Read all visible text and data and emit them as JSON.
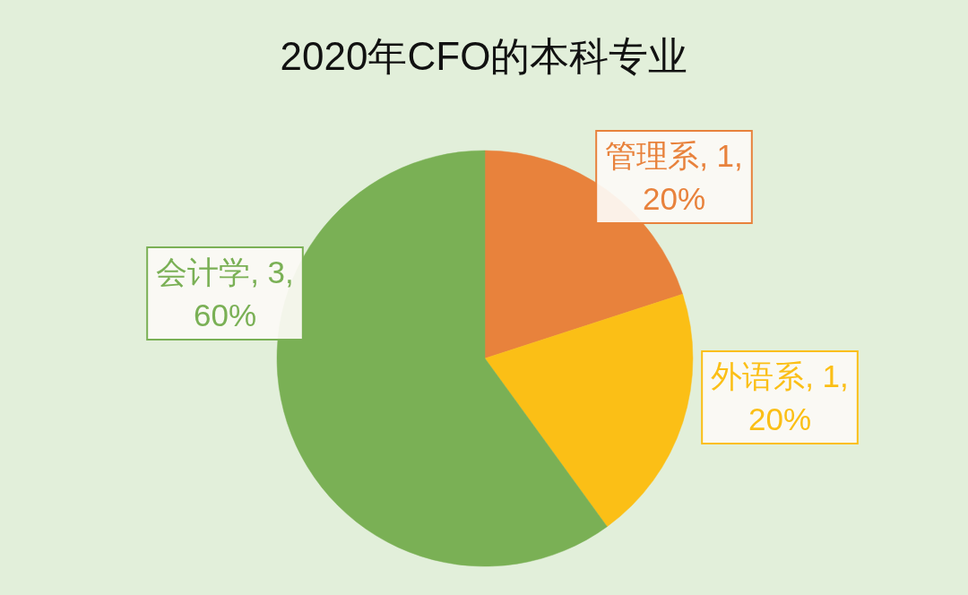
{
  "chart_data": {
    "type": "pie",
    "title": "2020年CFO的本科专业",
    "categories": [
      "管理系",
      "外语系",
      "会计学"
    ],
    "values": [
      1,
      1,
      3
    ],
    "colors": [
      "#e8823c",
      "#fbbf16",
      "#7ab055"
    ],
    "value_labels": [
      "1, 20%",
      "1, 20%",
      "3, 60%"
    ]
  }
}
